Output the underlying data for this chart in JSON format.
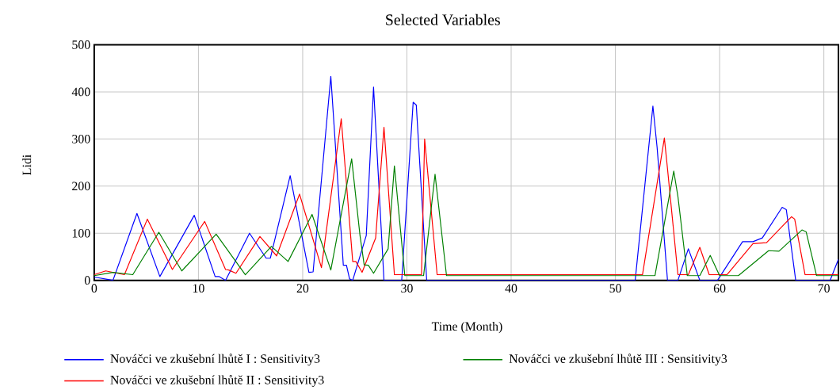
{
  "chart_data": {
    "type": "line",
    "title": "Selected Variables",
    "xlabel": "Time (Month)",
    "ylabel": "Lidi",
    "xlim": [
      0,
      71.4
    ],
    "ylim": [
      0,
      500
    ],
    "xticks": [
      0,
      10,
      20,
      30,
      40,
      50,
      60,
      70
    ],
    "yticks": [
      0,
      100,
      200,
      300,
      400,
      500
    ],
    "grid": true,
    "legend": "bottom",
    "series": [
      {
        "name": "Nováčci ve zkušební lhůtě I : Sensitivity3",
        "color": "#0000ff",
        "x": [
          0,
          1.8,
          4.1,
          6.3,
          9.6,
          11.6,
          12,
          12.6,
          14.9,
          16.5,
          16.9,
          18.8,
          20.6,
          21,
          22.7,
          23.9,
          24.2,
          24.5,
          24.8,
          26.1,
          26.8,
          27.8,
          29.5,
          30.6,
          30.9,
          31.9,
          51.9,
          53.6,
          54,
          55,
          56,
          57,
          58.1,
          59.8,
          62.2,
          63.2,
          64.1,
          66,
          66.4,
          67.3,
          70.6,
          71.4
        ],
        "values": [
          7,
          0,
          142,
          8,
          138,
          8,
          8,
          0,
          100,
          47,
          47,
          222,
          17,
          18,
          433,
          32,
          32,
          3,
          0,
          95,
          410,
          0,
          0,
          378,
          372,
          0,
          0,
          370,
          283,
          0,
          0,
          67,
          0,
          0,
          82,
          82,
          90,
          155,
          150,
          0,
          0,
          45
        ]
      },
      {
        "name": "Nováčci ve zkušební lhůtě II : Sensitivity3",
        "color": "#ff0000",
        "x": [
          0,
          1.1,
          2.9,
          5.1,
          7.5,
          10.6,
          12.6,
          12.9,
          13.6,
          15.9,
          17.5,
          19.7,
          21.8,
          23.7,
          24.8,
          25.1,
          25.7,
          27,
          27.8,
          28.8,
          31.4,
          31.7,
          32.9,
          52.6,
          54.7,
          55,
          56,
          57,
          58.1,
          59,
          60.7,
          63.2,
          64.5,
          66.9,
          67.2,
          68.2,
          71.4
        ],
        "values": [
          12,
          20,
          12,
          130,
          23,
          125,
          23,
          22,
          15,
          93,
          52,
          183,
          27,
          343,
          40,
          40,
          17,
          90,
          325,
          12,
          12,
          300,
          12,
          12,
          302,
          237,
          12,
          12,
          70,
          12,
          12,
          78,
          80,
          135,
          130,
          12,
          12
        ]
      },
      {
        "name": "Nováčci ve zkušební lhůtě III : Sensitivity3",
        "color": "#008000",
        "x": [
          0,
          1.8,
          3.7,
          6.2,
          8.4,
          11.7,
          14.5,
          17,
          18.6,
          20.9,
          22.7,
          24.7,
          25.5,
          25.9,
          26.3,
          26.8,
          28.2,
          28.8,
          29.8,
          31.6,
          32.7,
          33.8,
          53.8,
          55.6,
          56,
          56.9,
          58.1,
          59.1,
          60,
          61.8,
          64.7,
          65.7,
          67.9,
          68.3,
          69.3,
          71.4
        ],
        "values": [
          10,
          17,
          12,
          102,
          20,
          98,
          12,
          72,
          40,
          140,
          22,
          258,
          95,
          33,
          32,
          15,
          67,
          243,
          10,
          10,
          225,
          10,
          10,
          232,
          178,
          10,
          10,
          53,
          10,
          10,
          63,
          62,
          107,
          103,
          10,
          10
        ]
      }
    ]
  }
}
